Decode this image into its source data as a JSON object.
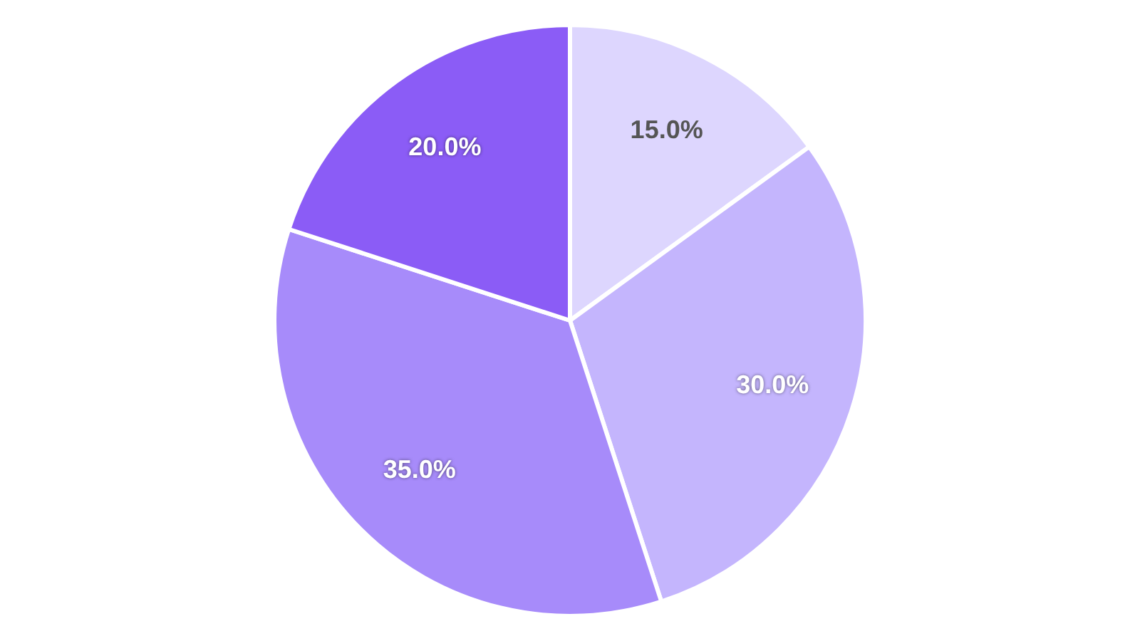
{
  "chart_data": {
    "type": "pie",
    "categories": [
      null,
      null,
      null,
      null
    ],
    "values": [
      15,
      30,
      35,
      20
    ],
    "colors": [
      "#ddd6fe",
      "#c4b5fd",
      "#a78bfa",
      "#8b5cf6"
    ],
    "value_labels": [
      "15.0%",
      "30.0%",
      "35.0%",
      "20.0%"
    ],
    "legend": false
  }
}
